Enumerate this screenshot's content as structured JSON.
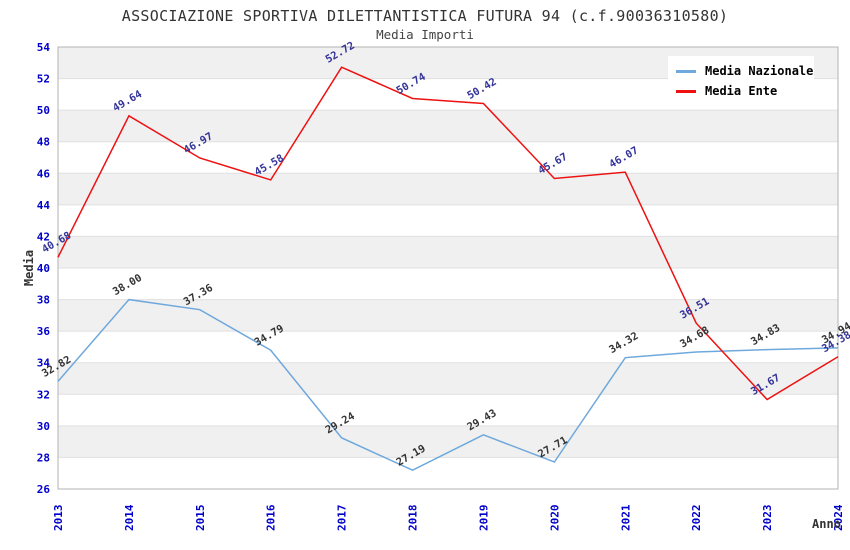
{
  "header": {
    "title": "ASSOCIAZIONE SPORTIVA DILETTANTISTICA FUTURA 94 (c.f.90036310580)",
    "subtitle": "Media Importi"
  },
  "chart_data": {
    "type": "line",
    "title": "ASSOCIAZIONE SPORTIVA DILETTANTISTICA FUTURA 94 (c.f.90036310580)",
    "subtitle": "Media Importi",
    "xlabel": "Anno",
    "ylabel": "Media",
    "categories": [
      "2013",
      "2014",
      "2015",
      "2016",
      "2017",
      "2018",
      "2019",
      "2020",
      "2021",
      "2022",
      "2023",
      "2024"
    ],
    "series": [
      {
        "name": "Media Nazionale",
        "color": "#6fa8dc",
        "label_color": "#333333",
        "values": [
          32.82,
          38.0,
          37.36,
          34.79,
          29.24,
          27.19,
          29.43,
          27.71,
          34.32,
          34.68,
          34.83,
          34.94
        ]
      },
      {
        "name": "Media Ente",
        "color": "#ee1111",
        "label_color": "#333399",
        "values": [
          40.68,
          49.64,
          46.97,
          45.58,
          52.72,
          50.74,
          50.42,
          45.67,
          46.07,
          36.51,
          31.67,
          34.38
        ]
      }
    ],
    "ylim": [
      26,
      54
    ],
    "ytick_step": 2,
    "grid": true,
    "legend_position": "top-right",
    "band_color": "#f0f0f0",
    "gridline_color": "#e0e0e0",
    "border_color": "#b3b3b3",
    "tick_color": "#0000cc"
  }
}
